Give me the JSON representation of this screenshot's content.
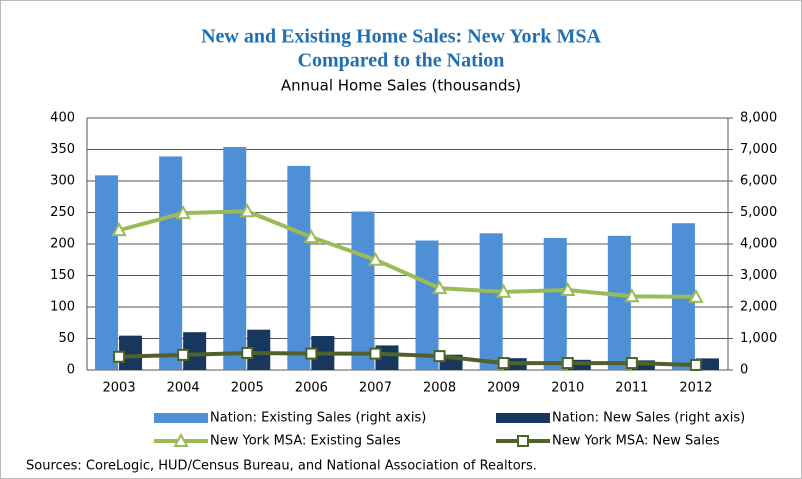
{
  "chart_data": {
    "type": "bar-line",
    "title": [
      "New and Existing Home Sales: New York MSA",
      "Compared to the Nation"
    ],
    "subtitle": "Annual Home Sales (thousands)",
    "categories": [
      "2003",
      "2004",
      "2005",
      "2006",
      "2007",
      "2008",
      "2009",
      "2010",
      "2011",
      "2012"
    ],
    "series": [
      {
        "name": "Nation: Existing Sales (right axis)",
        "type": "bar",
        "axis": "y2",
        "color": "#4f8fd6",
        "values": [
          6180,
          6780,
          7080,
          6480,
          5030,
          4110,
          4340,
          4190,
          4260,
          4660
        ]
      },
      {
        "name": "Nation: New Sales (right axis)",
        "type": "bar",
        "axis": "y2",
        "color": "#17375e",
        "values": [
          1090,
          1200,
          1280,
          1080,
          780,
          485,
          375,
          323,
          306,
          368
        ]
      },
      {
        "name": "New York MSA: Existing Sales",
        "type": "line",
        "marker": "triangle",
        "color": "#9bbb59",
        "values": [
          222,
          249,
          252,
          211,
          175,
          130,
          124,
          127,
          117,
          116
        ]
      },
      {
        "name": "New York MSA: New Sales",
        "type": "line",
        "marker": "square",
        "color": "#4f6228",
        "values": [
          21,
          24,
          27,
          26,
          26,
          22,
          11,
          11,
          11,
          8
        ]
      }
    ],
    "ylim": [
      0,
      400
    ],
    "yticks": [
      0,
      50,
      100,
      150,
      200,
      250,
      300,
      350,
      400
    ],
    "y2lim": [
      0,
      8000
    ],
    "y2ticks": [
      0,
      {
        "value": 1000,
        "label": "1,000"
      },
      {
        "value": 2000,
        "label": "2,000"
      },
      {
        "value": 3000,
        "label": "3,000"
      },
      {
        "value": 4000,
        "label": "4,000"
      },
      {
        "value": 5000,
        "label": "5,000"
      },
      {
        "value": 6000,
        "label": "6,000"
      },
      {
        "value": 7000,
        "label": "7,000"
      },
      {
        "value": 8000,
        "label": "8,000"
      }
    ],
    "grid": true,
    "note": "Sources: CoreLogic, HUD/Census Bureau, and National Association of Realtors."
  }
}
